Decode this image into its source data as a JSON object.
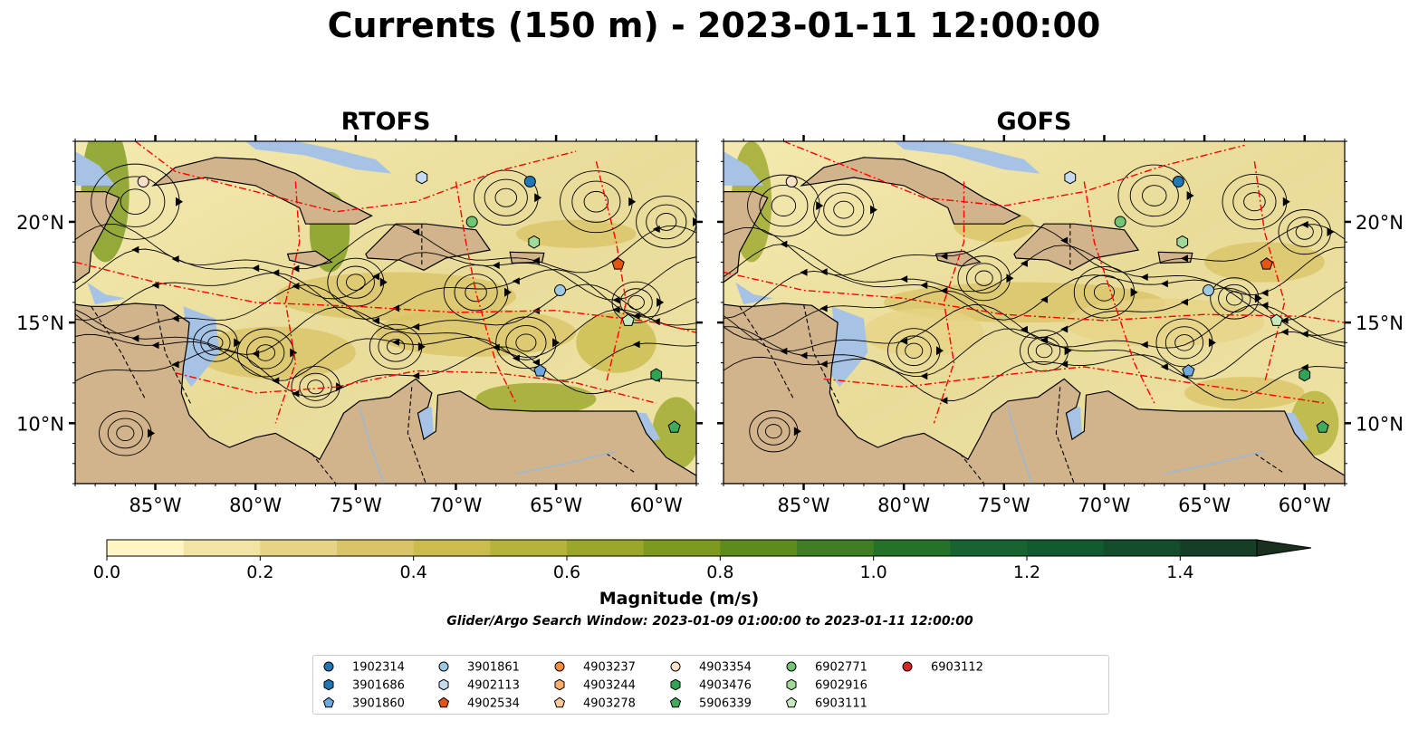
{
  "figure": {
    "title": "Currents (150 m) - 2023-01-11 12:00:00",
    "search_window": "Glider/Argo Search Window: 2023-01-09 01:00:00 to 2023-01-11 12:00:00"
  },
  "colors": {
    "land": "#d2b48c",
    "shallow_water": "#a6c3e6",
    "front": "#ff0000",
    "streamline": "#000000"
  },
  "chart_data": [
    {
      "type": "streamplot",
      "title": "RTOFS",
      "xlim": [
        -89,
        -58
      ],
      "ylim": [
        7,
        24
      ],
      "x_ticks": [
        -85,
        -80,
        -75,
        -70,
        -65,
        -60
      ],
      "y_ticks": [
        10,
        15,
        20
      ],
      "x_tick_labels": [
        "85°W",
        "80°W",
        "75°W",
        "70°W",
        "65°W",
        "60°W"
      ],
      "y_tick_labels": [
        "10°N",
        "15°N",
        "20°N"
      ],
      "y_axis_side": "left"
    },
    {
      "type": "streamplot",
      "title": "GOFS",
      "xlim": [
        -89,
        -58
      ],
      "ylim": [
        7,
        24
      ],
      "x_ticks": [
        -85,
        -80,
        -75,
        -70,
        -65,
        -60
      ],
      "y_ticks": [
        10,
        15,
        20
      ],
      "x_tick_labels": [
        "85°W",
        "80°W",
        "75°W",
        "70°W",
        "65°W",
        "60°W"
      ],
      "y_tick_labels": [
        "10°N",
        "15°N",
        "20°N"
      ],
      "y_axis_side": "right"
    }
  ],
  "colorbar": {
    "label": "Magnitude (m/s)",
    "range": [
      0.0,
      1.5
    ],
    "extend": "max",
    "tick_values": [
      0.0,
      0.2,
      0.4,
      0.6,
      0.8,
      1.0,
      1.2,
      1.4
    ],
    "tick_labels": [
      "0.0",
      "0.2",
      "0.4",
      "0.6",
      "0.8",
      "1.0",
      "1.2",
      "1.4"
    ],
    "levels": [
      "#fff6c4",
      "#f2e4a3",
      "#e6d386",
      "#d9c468",
      "#cbbd4d",
      "#b5b33a",
      "#9aa729",
      "#7c9a1d",
      "#5e8c1c",
      "#3f7e22",
      "#257129",
      "#166430",
      "#125a30",
      "#134d2c",
      "#163d26",
      "#19301f"
    ]
  },
  "floats": [
    {
      "id": "1902314",
      "marker": "circle",
      "color": "#1f77b4",
      "lon": -66.3,
      "lat": 22.0
    },
    {
      "id": "3901686",
      "marker": "hexagon",
      "color": "#1f77b4"
    },
    {
      "id": "3901860",
      "marker": "pentagon",
      "color": "#6fa8dc",
      "lon": -65.8,
      "lat": 12.6
    },
    {
      "id": "3901861",
      "marker": "circle",
      "color": "#9ecae1",
      "lon": -64.8,
      "lat": 16.6
    },
    {
      "id": "4902113",
      "marker": "hexagon",
      "color": "#c6dbef",
      "lon": -71.7,
      "lat": 22.2
    },
    {
      "id": "4902534",
      "marker": "pentagon",
      "color": "#e6550d",
      "lon": -61.9,
      "lat": 17.9
    },
    {
      "id": "4903237",
      "marker": "circle",
      "color": "#fd8d3c"
    },
    {
      "id": "4903244",
      "marker": "hexagon",
      "color": "#fdae6b"
    },
    {
      "id": "4903278",
      "marker": "pentagon",
      "color": "#fdc89b"
    },
    {
      "id": "4903354",
      "marker": "circle",
      "color": "#fde0c8",
      "lon": -85.6,
      "lat": 22.0
    },
    {
      "id": "4903476",
      "marker": "hexagon",
      "color": "#31a354",
      "lon": -60.0,
      "lat": 12.4
    },
    {
      "id": "5906339",
      "marker": "pentagon",
      "color": "#41ab5d",
      "lon": -59.1,
      "lat": 9.8
    },
    {
      "id": "6902771",
      "marker": "circle",
      "color": "#74c476",
      "lon": -69.2,
      "lat": 20.0
    },
    {
      "id": "6902916",
      "marker": "hexagon",
      "color": "#a1d99b",
      "lon": -66.1,
      "lat": 19.0
    },
    {
      "id": "6903111",
      "marker": "pentagon",
      "color": "#c7e9c0",
      "lon": -61.4,
      "lat": 15.1
    },
    {
      "id": "6903112",
      "marker": "circle",
      "color": "#d62728"
    }
  ]
}
